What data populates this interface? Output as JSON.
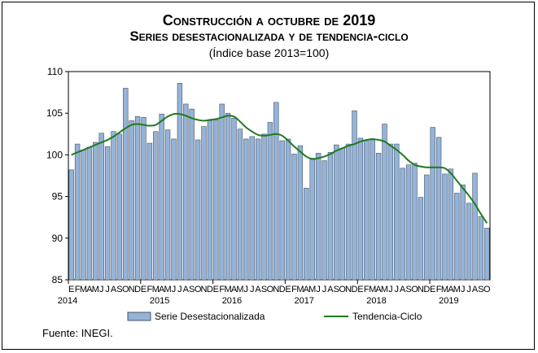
{
  "title": "Construcción a octubre de 2019",
  "subtitle": "Series desestacionalizada y de tendencia-ciclo",
  "subtitle2": "(Índice base 2013=100)",
  "source": "Fuente: INEGI.",
  "colors": {
    "bar_fill": "#95b3d7",
    "bar_stroke": "#44546a",
    "trend": "#1e7b1e"
  },
  "chart_data": {
    "type": "bar",
    "ylim": [
      85,
      110
    ],
    "yticks": [
      85,
      90,
      95,
      100,
      105,
      110
    ],
    "grid": false,
    "legend_position": "bottom",
    "month_labels": [
      "E",
      "F",
      "M",
      "A",
      "M",
      "J",
      "J",
      "A",
      "S",
      "O",
      "N",
      "D"
    ],
    "year_labels": [
      "2014",
      "2015",
      "2016",
      "2017",
      "2018",
      "2019"
    ],
    "categories": [
      "2014-01",
      "2014-02",
      "2014-03",
      "2014-04",
      "2014-05",
      "2014-06",
      "2014-07",
      "2014-08",
      "2014-09",
      "2014-10",
      "2014-11",
      "2014-12",
      "2015-01",
      "2015-02",
      "2015-03",
      "2015-04",
      "2015-05",
      "2015-06",
      "2015-07",
      "2015-08",
      "2015-09",
      "2015-10",
      "2015-11",
      "2015-12",
      "2016-01",
      "2016-02",
      "2016-03",
      "2016-04",
      "2016-05",
      "2016-06",
      "2016-07",
      "2016-08",
      "2016-09",
      "2016-10",
      "2016-11",
      "2016-12",
      "2017-01",
      "2017-02",
      "2017-03",
      "2017-04",
      "2017-05",
      "2017-06",
      "2017-07",
      "2017-08",
      "2017-09",
      "2017-10",
      "2017-11",
      "2017-12",
      "2018-01",
      "2018-02",
      "2018-03",
      "2018-04",
      "2018-05",
      "2018-06",
      "2018-07",
      "2018-08",
      "2018-09",
      "2018-10",
      "2018-11",
      "2018-12",
      "2019-01",
      "2019-02",
      "2019-03",
      "2019-04",
      "2019-05",
      "2019-06",
      "2019-07",
      "2019-08",
      "2019-09",
      "2019-10"
    ],
    "series": [
      {
        "name": "Serie Desestacionalizada",
        "type": "bar",
        "values": [
          98.2,
          101.3,
          100.6,
          100.9,
          101.5,
          102.6,
          101.0,
          102.8,
          102.5,
          108.0,
          104.1,
          104.6,
          104.5,
          101.4,
          102.8,
          104.9,
          103.0,
          101.9,
          108.6,
          106.1,
          105.5,
          101.8,
          103.4,
          104.1,
          104.2,
          106.1,
          105.0,
          104.4,
          103.1,
          101.9,
          102.2,
          101.9,
          102.5,
          103.9,
          106.3,
          101.7,
          101.9,
          100.1,
          101.1,
          96.0,
          99.6,
          100.2,
          99.3,
          100.3,
          101.2,
          100.8,
          101.3,
          105.3,
          102.0,
          101.7,
          101.8,
          100.2,
          103.7,
          101.3,
          101.3,
          98.4,
          98.8,
          99.0,
          94.9,
          97.6,
          103.3,
          102.1,
          97.7,
          98.3,
          95.4,
          96.4,
          94.2,
          97.8,
          92.6,
          91.2
        ]
      },
      {
        "name": "Tendencia-Ciclo",
        "type": "line",
        "values": [
          100.0,
          100.3,
          100.6,
          100.9,
          101.2,
          101.5,
          101.8,
          102.2,
          102.7,
          103.2,
          103.6,
          103.7,
          103.6,
          103.5,
          103.6,
          104.1,
          104.6,
          104.9,
          104.9,
          104.7,
          104.4,
          104.2,
          104.1,
          104.2,
          104.3,
          104.5,
          104.7,
          104.6,
          104.0,
          103.3,
          102.8,
          102.4,
          102.3,
          102.4,
          102.5,
          102.3,
          101.7,
          101.0,
          100.4,
          99.8,
          99.5,
          99.6,
          99.8,
          100.1,
          100.5,
          100.8,
          101.1,
          101.3,
          101.6,
          101.8,
          101.9,
          101.8,
          101.6,
          101.1,
          100.6,
          100.0,
          99.3,
          98.8,
          98.6,
          98.5,
          98.5,
          98.5,
          98.4,
          97.8,
          96.9,
          96.0,
          95.1,
          94.1,
          92.9,
          91.8
        ]
      }
    ]
  }
}
